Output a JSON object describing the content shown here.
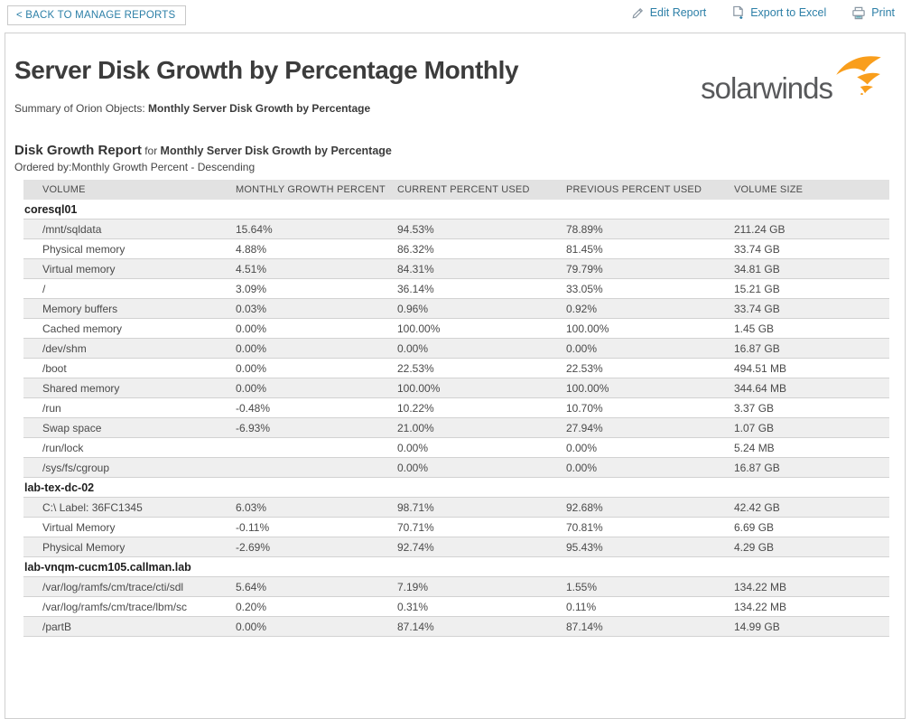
{
  "colors": {
    "link_blue": "#2c7fa7",
    "header_bg": "#e2e2e2",
    "stripe_bg": "#efefef",
    "logo_orange": "#f99e1c",
    "icon_gray": "#8a97a3"
  },
  "topbar": {
    "back_button": "< BACK TO MANAGE REPORTS",
    "actions": [
      {
        "icon": "pencil-icon",
        "label": "Edit Report"
      },
      {
        "icon": "export-excel-icon",
        "label": "Export to Excel"
      },
      {
        "icon": "printer-icon",
        "label": "Print"
      }
    ]
  },
  "report": {
    "title": "Server Disk Growth by Percentage Monthly",
    "logo_text": "solarwinds",
    "summary_prefix": "Summary of Orion Objects: ",
    "summary_bold": "Monthly Server Disk Growth by Percentage",
    "section_title": "Disk Growth Report",
    "section_connector": " for ",
    "section_subject": "Monthly Server Disk Growth by Percentage",
    "ordered_by": "Ordered by:Monthly Growth Percent - Descending"
  },
  "table": {
    "columns": [
      "VOLUME",
      "MONTHLY GROWTH PERCENT",
      "CURRENT PERCENT USED",
      "PREVIOUS PERCENT USED",
      "VOLUME SIZE"
    ],
    "groups": [
      {
        "name": "coresql01",
        "rows": [
          {
            "volume": "/mnt/sqldata",
            "monthly": "15.64%",
            "current": "94.53%",
            "previous": "78.89%",
            "size": "211.24 GB"
          },
          {
            "volume": "Physical memory",
            "monthly": "4.88%",
            "current": "86.32%",
            "previous": "81.45%",
            "size": "33.74 GB"
          },
          {
            "volume": "Virtual memory",
            "monthly": "4.51%",
            "current": "84.31%",
            "previous": "79.79%",
            "size": "34.81 GB"
          },
          {
            "volume": "/",
            "monthly": "3.09%",
            "current": "36.14%",
            "previous": "33.05%",
            "size": "15.21 GB"
          },
          {
            "volume": "Memory buffers",
            "monthly": "0.03%",
            "current": "0.96%",
            "previous": "0.92%",
            "size": "33.74 GB"
          },
          {
            "volume": "Cached memory",
            "monthly": "0.00%",
            "current": "100.00%",
            "previous": "100.00%",
            "size": "1.45 GB"
          },
          {
            "volume": "/dev/shm",
            "monthly": "0.00%",
            "current": "0.00%",
            "previous": "0.00%",
            "size": "16.87 GB"
          },
          {
            "volume": "/boot",
            "monthly": "0.00%",
            "current": "22.53%",
            "previous": "22.53%",
            "size": "494.51 MB"
          },
          {
            "volume": "Shared memory",
            "monthly": "0.00%",
            "current": "100.00%",
            "previous": "100.00%",
            "size": "344.64 MB"
          },
          {
            "volume": "/run",
            "monthly": "-0.48%",
            "current": "10.22%",
            "previous": "10.70%",
            "size": "3.37 GB"
          },
          {
            "volume": "Swap space",
            "monthly": "-6.93%",
            "current": "21.00%",
            "previous": "27.94%",
            "size": "1.07 GB"
          },
          {
            "volume": "/run/lock",
            "monthly": "",
            "current": "0.00%",
            "previous": "0.00%",
            "size": "5.24 MB"
          },
          {
            "volume": "/sys/fs/cgroup",
            "monthly": "",
            "current": "0.00%",
            "previous": "0.00%",
            "size": "16.87 GB"
          }
        ]
      },
      {
        "name": "lab-tex-dc-02",
        "rows": [
          {
            "volume": "C:\\ Label: 36FC1345",
            "monthly": "6.03%",
            "current": "98.71%",
            "previous": "92.68%",
            "size": "42.42 GB"
          },
          {
            "volume": "Virtual Memory",
            "monthly": "-0.11%",
            "current": "70.71%",
            "previous": "70.81%",
            "size": "6.69 GB"
          },
          {
            "volume": "Physical Memory",
            "monthly": "-2.69%",
            "current": "92.74%",
            "previous": "95.43%",
            "size": "4.29 GB"
          }
        ]
      },
      {
        "name": "lab-vnqm-cucm105.callman.lab",
        "rows": [
          {
            "volume": "/var/log/ramfs/cm/trace/cti/sdl",
            "monthly": "5.64%",
            "current": "7.19%",
            "previous": "1.55%",
            "size": "134.22 MB"
          },
          {
            "volume": "/var/log/ramfs/cm/trace/lbm/sc",
            "monthly": "0.20%",
            "current": "0.31%",
            "previous": "0.11%",
            "size": "134.22 MB"
          },
          {
            "volume": "/partB",
            "monthly": "0.00%",
            "current": "87.14%",
            "previous": "87.14%",
            "size": "14.99 GB"
          }
        ]
      }
    ]
  }
}
